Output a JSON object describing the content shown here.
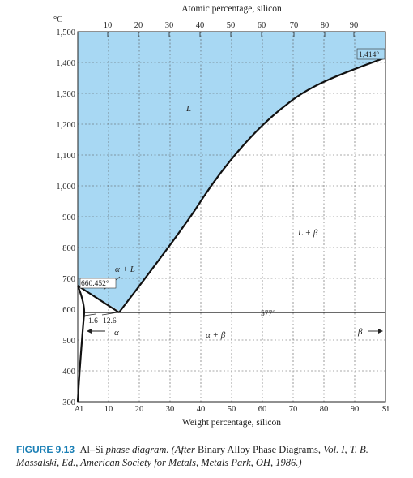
{
  "diagram": {
    "top_axis_title": "Atomic percentage, silicon",
    "bottom_axis_title": "Weight percentage, silicon",
    "y_unit": "°C",
    "top_ticks": [
      "10",
      "20",
      "30",
      "40",
      "50",
      "60",
      "70",
      "80",
      "90"
    ],
    "bottom_ticks": [
      "10",
      "20",
      "30",
      "40",
      "50",
      "60",
      "70",
      "80",
      "90"
    ],
    "x_left_label": "Al",
    "x_right_label": "Si",
    "y_ticks": [
      "300",
      "400",
      "500",
      "600",
      "700",
      "800",
      "900",
      "1,000",
      "1,100",
      "1,200",
      "1,300",
      "1,400",
      "1,500"
    ],
    "regions": {
      "liquid": "L",
      "alpha_l": "α + L",
      "l_beta": "L + β",
      "alpha_beta": "α + β",
      "alpha": "α",
      "beta": "β"
    },
    "points": {
      "al_melting": "660.452°",
      "si_melting": "1,414°",
      "eutectic_temp": "577°",
      "alpha_solubility": "1.6",
      "eutectic_comp": "12.6"
    },
    "colors": {
      "liquid_fill": "#a8d8f3",
      "line": "#111111"
    }
  },
  "caption": {
    "figure_label": "FIGURE 9.13",
    "text_1": "Al–Si",
    "text_2": "phase diagram. (After",
    "text_3": "Binary Alloy Phase Diagrams,",
    "text_4": "Vol. I,",
    "text_5": "T. B. Massalski, Ed., American Society for Metals, Metals Park, OH, 1986.)"
  }
}
